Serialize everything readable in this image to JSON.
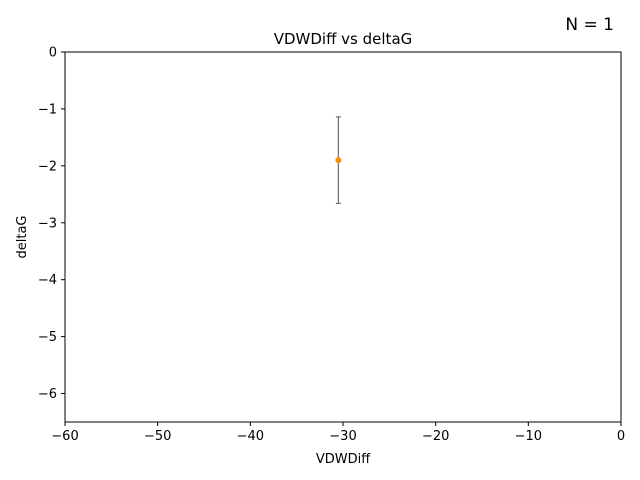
{
  "chart_data": {
    "type": "scatter",
    "title": "VDWDiff vs deltaG",
    "xlabel": "VDWDiff",
    "ylabel": "deltaG",
    "annotation": "N = 1",
    "xlim": [
      -60,
      0
    ],
    "ylim": [
      -6.5,
      0
    ],
    "xticks": [
      -60,
      -50,
      -40,
      -30,
      -20,
      -10,
      0
    ],
    "yticks": [
      0,
      -1,
      -2,
      -3,
      -4,
      -5,
      -6
    ],
    "xtick_labels": [
      "−60",
      "−50",
      "−40",
      "−30",
      "−20",
      "−10",
      "0"
    ],
    "ytick_labels": [
      "0",
      "−1",
      "−2",
      "−3",
      "−4",
      "−5",
      "−6"
    ],
    "grid": false,
    "points": [
      {
        "x": -30.5,
        "y": -1.9,
        "yerr_low": -2.66,
        "yerr_high": -1.14
      }
    ],
    "colors": {
      "point": "#ff8c00",
      "errorbar": "#6e6e6e",
      "axes": "#000000"
    }
  }
}
